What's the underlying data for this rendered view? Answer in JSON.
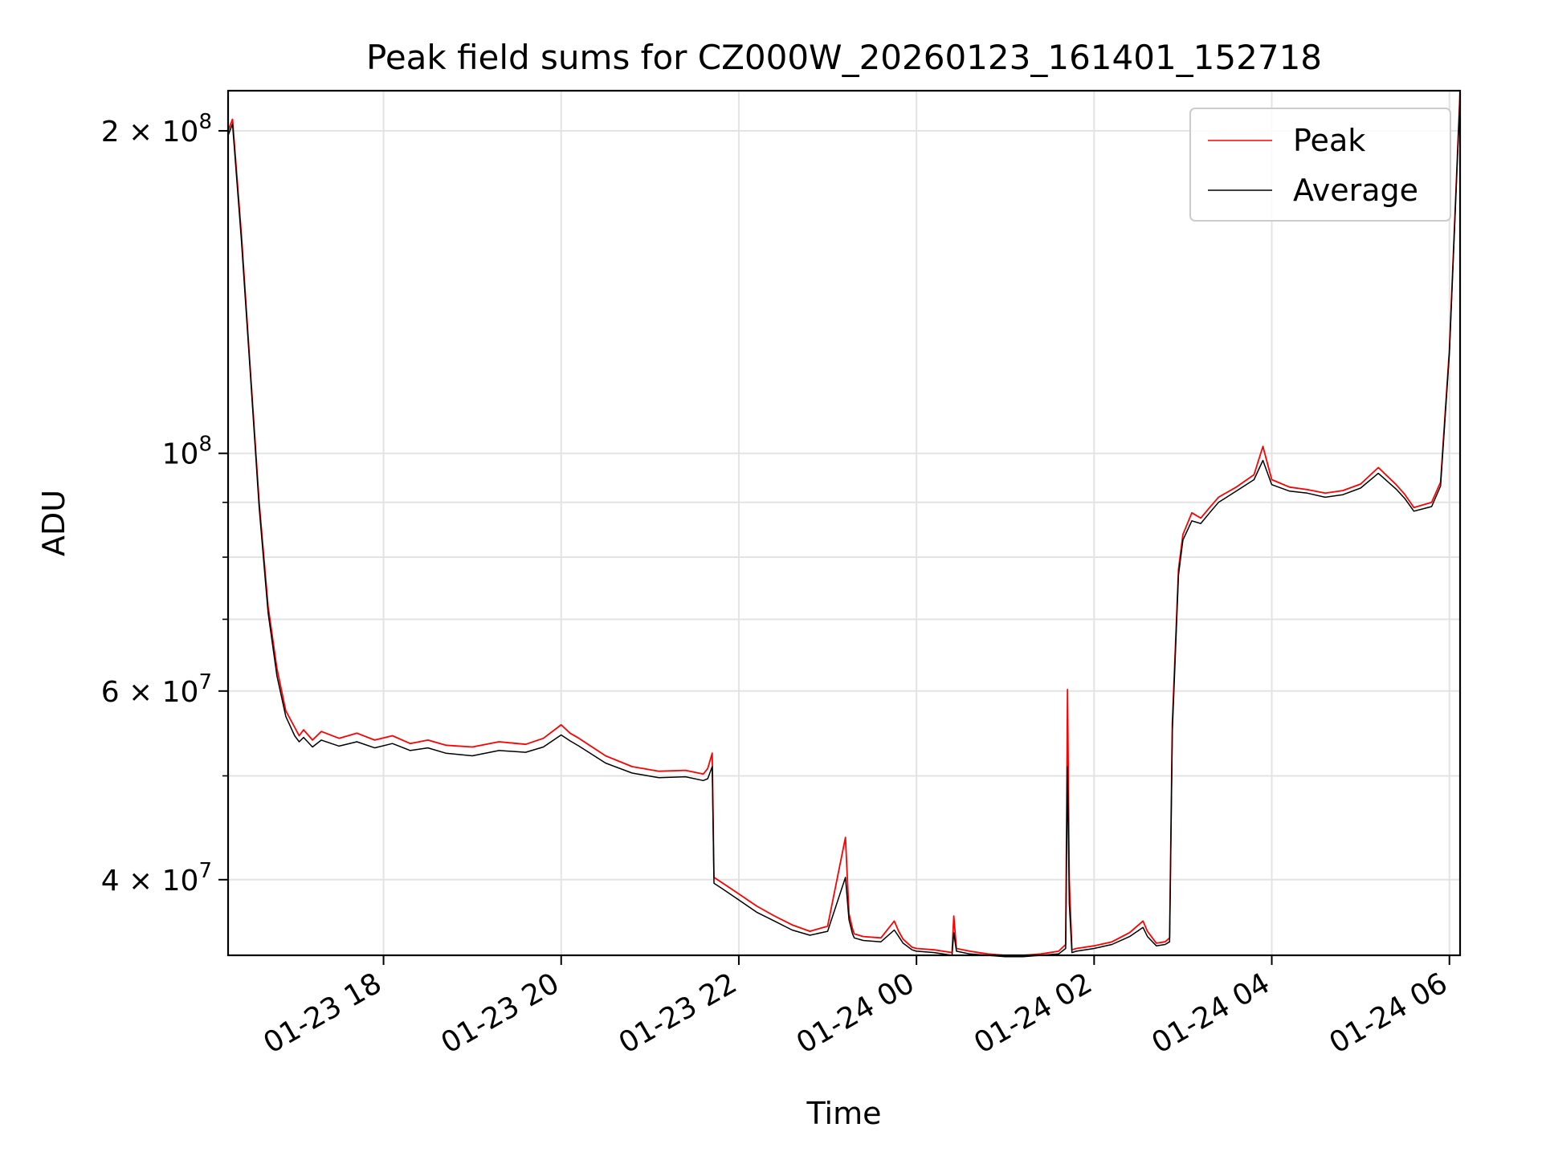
{
  "chart_data": {
    "type": "line",
    "title": "Peak field sums for CZ000W_20260123_161401_152718",
    "xlabel": "Time",
    "ylabel": "ADU",
    "yscale": "log",
    "ylim": [
      34000000,
      218000000
    ],
    "xlim_hours": [
      -7.75,
      6.12
    ],
    "grid": true,
    "legend_position": "top-right",
    "x_ticks": [
      {
        "label": "01-23 18",
        "hours": -6
      },
      {
        "label": "01-23 20",
        "hours": -4
      },
      {
        "label": "01-23 22",
        "hours": -2
      },
      {
        "label": "01-24 00",
        "hours": 0
      },
      {
        "label": "01-24 02",
        "hours": 2
      },
      {
        "label": "01-24 04",
        "hours": 4
      },
      {
        "label": "01-24 06",
        "hours": 6
      }
    ],
    "y_major_ticks": [
      {
        "label_base": "2 × 10",
        "label_exp": "8",
        "value": 200000000
      },
      {
        "label_base": "10",
        "label_exp": "8",
        "value": 100000000
      },
      {
        "label_base": "6 × 10",
        "label_exp": "7",
        "value": 60000000
      },
      {
        "label_base": "4 × 10",
        "label_exp": "7",
        "value": 40000000
      }
    ],
    "y_minor_ticks": [
      90000000,
      80000000,
      70000000,
      50000000
    ],
    "colors": {
      "peak": "#ff0000",
      "average": "#000000"
    },
    "series": [
      {
        "name": "Peak",
        "color": "#ff0000",
        "x": [
          -7.75,
          -7.7,
          -7.6,
          -7.5,
          -7.4,
          -7.3,
          -7.2,
          -7.1,
          -7.0,
          -6.95,
          -6.9,
          -6.8,
          -6.7,
          -6.5,
          -6.3,
          -6.1,
          -5.9,
          -5.7,
          -5.5,
          -5.3,
          -5.0,
          -4.7,
          -4.4,
          -4.2,
          -4.0,
          -3.9,
          -3.8,
          -3.5,
          -3.2,
          -2.9,
          -2.6,
          -2.4,
          -2.35,
          -2.3,
          -2.28,
          -2.2,
          -2.0,
          -1.8,
          -1.6,
          -1.4,
          -1.2,
          -1.0,
          -0.8,
          -0.76,
          -0.72,
          -0.7,
          -0.6,
          -0.4,
          -0.25,
          -0.2,
          -0.15,
          -0.05,
          0.0,
          0.2,
          0.4,
          0.42,
          0.45,
          0.6,
          0.8,
          1.0,
          1.2,
          1.4,
          1.6,
          1.68,
          1.7,
          1.72,
          1.75,
          1.8,
          2.0,
          2.2,
          2.4,
          2.55,
          2.6,
          2.7,
          2.8,
          2.85,
          2.88,
          2.95,
          3.0,
          3.1,
          3.2,
          3.3,
          3.4,
          3.6,
          3.8,
          3.9,
          4.0,
          4.2,
          4.4,
          4.6,
          4.8,
          5.0,
          5.2,
          5.4,
          5.5,
          5.6,
          5.8,
          5.9,
          6.0,
          6.12
        ],
        "y": [
          200000000,
          205000000,
          160000000,
          120000000,
          90000000,
          72000000,
          63000000,
          57500000,
          55500000,
          54500000,
          55200000,
          54000000,
          55000000,
          54200000,
          54800000,
          54000000,
          54500000,
          53600000,
          54000000,
          53400000,
          53200000,
          53800000,
          53500000,
          54200000,
          55800000,
          54800000,
          54200000,
          52200000,
          51000000,
          50500000,
          50600000,
          50200000,
          50800000,
          52500000,
          40200000,
          39800000,
          38800000,
          37800000,
          37000000,
          36300000,
          35800000,
          36200000,
          43800000,
          37200000,
          36000000,
          35600000,
          35400000,
          35300000,
          36600000,
          35800000,
          35200000,
          34600000,
          34500000,
          34400000,
          34200000,
          37000000,
          34500000,
          34300000,
          34100000,
          34000000,
          34000000,
          34100000,
          34300000,
          34800000,
          60200000,
          40000000,
          34400000,
          34500000,
          34700000,
          35000000,
          35700000,
          36600000,
          35800000,
          34900000,
          35000000,
          35300000,
          56000000,
          78000000,
          84000000,
          88000000,
          87000000,
          89000000,
          91000000,
          93000000,
          95500000,
          101500000,
          94500000,
          93000000,
          92500000,
          91800000,
          92300000,
          93600000,
          97000000,
          93500000,
          91500000,
          89000000,
          90000000,
          94000000,
          125000000,
          218000000
        ]
      },
      {
        "name": "Average",
        "color": "#000000",
        "x": [
          -7.75,
          -7.7,
          -7.6,
          -7.5,
          -7.4,
          -7.3,
          -7.2,
          -7.1,
          -7.0,
          -6.95,
          -6.9,
          -6.8,
          -6.7,
          -6.5,
          -6.3,
          -6.1,
          -5.9,
          -5.7,
          -5.5,
          -5.3,
          -5.0,
          -4.7,
          -4.4,
          -4.2,
          -4.0,
          -3.9,
          -3.8,
          -3.5,
          -3.2,
          -2.9,
          -2.6,
          -2.4,
          -2.35,
          -2.3,
          -2.28,
          -2.2,
          -2.0,
          -1.8,
          -1.6,
          -1.4,
          -1.2,
          -1.0,
          -0.8,
          -0.76,
          -0.72,
          -0.7,
          -0.6,
          -0.4,
          -0.25,
          -0.2,
          -0.15,
          -0.05,
          0.0,
          0.2,
          0.4,
          0.42,
          0.45,
          0.6,
          0.8,
          1.0,
          1.2,
          1.4,
          1.6,
          1.68,
          1.7,
          1.72,
          1.75,
          1.8,
          2.0,
          2.2,
          2.4,
          2.55,
          2.6,
          2.7,
          2.8,
          2.85,
          2.88,
          2.95,
          3.0,
          3.1,
          3.2,
          3.3,
          3.4,
          3.6,
          3.8,
          3.9,
          4.0,
          4.2,
          4.4,
          4.6,
          4.8,
          5.0,
          5.2,
          5.4,
          5.5,
          5.6,
          5.8,
          5.9,
          6.0,
          6.12
        ],
        "y": [
          198000000,
          203000000,
          158000000,
          119000000,
          89000000,
          71000000,
          62000000,
          56800000,
          54500000,
          53800000,
          54300000,
          53200000,
          54000000,
          53300000,
          53800000,
          53100000,
          53600000,
          52800000,
          53100000,
          52500000,
          52200000,
          52800000,
          52600000,
          53200000,
          54600000,
          53900000,
          53300000,
          51400000,
          50300000,
          49800000,
          49900000,
          49500000,
          49700000,
          51000000,
          39700000,
          39300000,
          38300000,
          37300000,
          36600000,
          35900000,
          35500000,
          35800000,
          40200000,
          36700000,
          35600000,
          35300000,
          35100000,
          35000000,
          35900000,
          35400000,
          34900000,
          34400000,
          34300000,
          34200000,
          34000000,
          35700000,
          34300000,
          34100000,
          34000000,
          33900000,
          33900000,
          34000000,
          34100000,
          34500000,
          51000000,
          38000000,
          34200000,
          34300000,
          34500000,
          34800000,
          35400000,
          36100000,
          35400000,
          34700000,
          34800000,
          35000000,
          55000000,
          77000000,
          83000000,
          86500000,
          86000000,
          88000000,
          90000000,
          92200000,
          94500000,
          98500000,
          93500000,
          92200000,
          91800000,
          91000000,
          91500000,
          92800000,
          95800000,
          92600000,
          90700000,
          88300000,
          89200000,
          93200000,
          124000000,
          216000000
        ]
      }
    ]
  }
}
